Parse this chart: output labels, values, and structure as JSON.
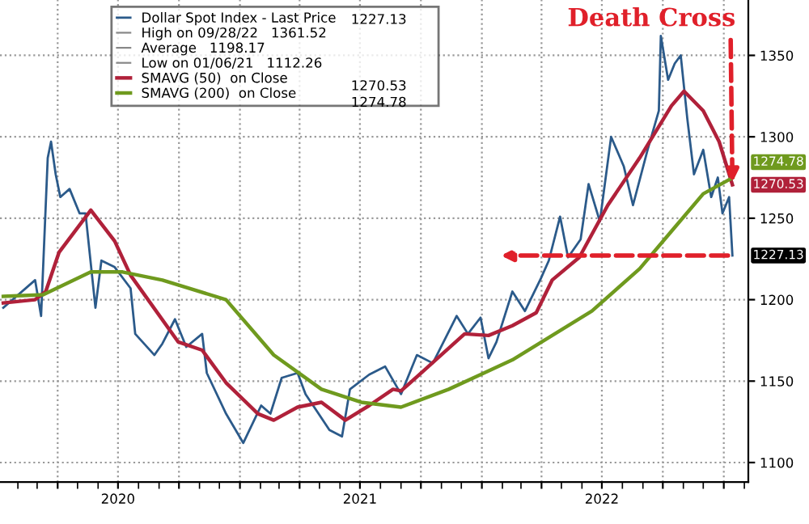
{
  "chart_data": {
    "type": "line",
    "x": [
      "2020-01-10",
      "2020-02-27",
      "2020-03-07",
      "2020-03-17",
      "2020-03-22",
      "2020-03-29",
      "2020-04-05",
      "2020-04-19",
      "2020-05-04",
      "2020-05-13",
      "2020-05-28",
      "2020-06-06",
      "2020-06-26",
      "2020-07-20",
      "2020-07-27",
      "2020-08-25",
      "2020-09-06",
      "2020-09-25",
      "2020-10-12",
      "2020-11-05",
      "2020-11-12",
      "2020-12-11",
      "2021-01-06",
      "2021-02-02",
      "2021-02-16",
      "2021-03-05",
      "2021-03-29",
      "2021-04-10",
      "2021-05-16",
      "2021-06-04",
      "2021-06-16",
      "2021-07-15",
      "2021-08-08",
      "2021-09-01",
      "2021-09-25",
      "2021-10-19",
      "2021-11-24",
      "2021-12-11",
      "2021-12-30",
      "2022-01-11",
      "2022-01-23",
      "2022-02-16",
      "2022-03-07",
      "2022-03-31",
      "2022-04-12",
      "2022-04-29",
      "2022-05-11",
      "2022-05-30",
      "2022-06-11",
      "2022-06-28",
      "2022-07-15",
      "2022-08-03",
      "2022-08-17",
      "2022-09-08",
      "2022-09-25",
      "2022-09-28",
      "2022-10-09",
      "2022-10-19",
      "2022-10-28",
      "2022-11-07",
      "2022-11-17",
      "2022-12-01",
      "2022-12-13",
      "2022-12-23",
      "2022-12-30",
      "2023-01-09",
      "2023-01-14"
    ],
    "series": [
      {
        "name": "Dollar Spot Index - Last Price",
        "color": "#2b5a8a",
        "values": [
          1195,
          1212,
          1190,
          1287,
          1297,
          1277,
          1263,
          1268,
          1253,
          1253,
          1195,
          1224,
          1220,
          1207,
          1179,
          1166,
          1173,
          1188,
          1171,
          1179,
          1155,
          1130,
          1112,
          1135,
          1130,
          1152,
          1155,
          1142,
          1120,
          1116,
          1145,
          1154,
          1159,
          1142,
          1166,
          1161,
          1190,
          1179,
          1189,
          1164,
          1174,
          1205,
          1193,
          1213,
          1224,
          1251,
          1226,
          1237,
          1271,
          1248,
          1300,
          1282,
          1258,
          1292,
          1316,
          1362,
          1335,
          1345,
          1350,
          1311,
          1277,
          1292,
          1263,
          1275,
          1253,
          1263,
          1227.13
        ],
        "value_labels": [
          null,
          null,
          null,
          null,
          null,
          null,
          null,
          null,
          null,
          null,
          null,
          null,
          null,
          null,
          null,
          null,
          null,
          null,
          null,
          null,
          null,
          null,
          null,
          null,
          null,
          null,
          null,
          null,
          null,
          null,
          null,
          null,
          null,
          null,
          null,
          null,
          null,
          null,
          null,
          null,
          null,
          null,
          null,
          null,
          null,
          null,
          null,
          null,
          null,
          null,
          null,
          null,
          null,
          null,
          null,
          null,
          null,
          null,
          null,
          null,
          null,
          null,
          null,
          null,
          null,
          null,
          "1227.13"
        ]
      },
      {
        "name": "SMAVG (50)  on Close",
        "color": "#b0213a",
        "x": [
          "2020-01-10",
          "2020-02-27",
          "2020-03-14",
          "2020-04-03",
          "2020-05-21",
          "2020-06-26",
          "2020-07-20",
          "2020-09-30",
          "2020-11-05",
          "2020-12-11",
          "2021-01-28",
          "2021-02-21",
          "2021-03-29",
          "2021-05-04",
          "2021-06-09",
          "2021-07-15",
          "2021-08-20",
          "2021-09-01",
          "2021-10-07",
          "2021-12-06",
          "2022-01-11",
          "2022-02-16",
          "2022-03-24",
          "2022-04-17",
          "2022-05-28",
          "2022-07-10",
          "2022-08-27",
          "2022-10-14",
          "2022-11-02",
          "2022-12-01",
          "2022-12-25",
          "2023-01-14"
        ],
        "values": [
          1198,
          1200,
          1205,
          1229,
          1255,
          1236,
          1215,
          1174,
          1169,
          1149,
          1130,
          1126,
          1134,
          1137,
          1126,
          1135,
          1145,
          1144,
          1157,
          1179,
          1178,
          1184,
          1192,
          1212,
          1226,
          1258,
          1287,
          1319,
          1328,
          1316,
          1297,
          1270.53
        ],
        "value_labels": [
          null,
          null,
          null,
          null,
          null,
          null,
          null,
          null,
          null,
          null,
          null,
          null,
          null,
          null,
          null,
          null,
          null,
          null,
          null,
          null,
          null,
          null,
          null,
          null,
          null,
          null,
          null,
          null,
          null,
          null,
          null,
          "1270.53"
        ]
      },
      {
        "name": "SMAVG (200)  on Close",
        "color": "#6f9a1e",
        "x": [
          "2020-01-10",
          "2020-03-10",
          "2020-05-21",
          "2020-07-08",
          "2020-09-06",
          "2020-12-11",
          "2021-02-21",
          "2021-05-04",
          "2021-07-03",
          "2021-09-01",
          "2021-11-12",
          "2021-12-30",
          "2022-02-16",
          "2022-04-17",
          "2022-06-16",
          "2022-08-27",
          "2022-10-14",
          "2022-12-01",
          "2023-01-14"
        ],
        "values": [
          1202,
          1203,
          1217,
          1217,
          1212,
          1200,
          1166,
          1145,
          1137,
          1134,
          1145,
          1154,
          1163,
          1178,
          1193,
          1219,
          1242,
          1265,
          1274.78
        ],
        "value_labels": [
          null,
          null,
          null,
          null,
          null,
          null,
          null,
          null,
          null,
          null,
          null,
          null,
          null,
          null,
          null,
          null,
          null,
          null,
          "1274.78"
        ]
      }
    ],
    "annotations": [
      {
        "text": "Death Cross",
        "x": "2023-01-14",
        "y": 1272
      },
      "High on 09/28/22   1361.52",
      "Average   1198.17",
      "Low on 01/06/21   1112.26"
    ],
    "xlim": [
      "2020-01-05",
      "2023-02-07"
    ],
    "xticks": [
      {
        "value": "2020-04-01",
        "label": null
      },
      {
        "value": "2020-07-01",
        "label": "2020"
      },
      {
        "value": "2020-10-01",
        "label": null
      },
      {
        "value": "2021-01-01",
        "label": null
      },
      {
        "value": "2021-04-01",
        "label": null
      },
      {
        "value": "2021-07-01",
        "label": "2021"
      },
      {
        "value": "2021-10-01",
        "label": null
      },
      {
        "value": "2022-01-01",
        "label": null
      },
      {
        "value": "2022-04-01",
        "label": null
      },
      {
        "value": "2022-07-01",
        "label": "2022"
      },
      {
        "value": "2022-10-01",
        "label": null
      },
      {
        "value": "2023-01-01",
        "label": null
      }
    ],
    "ylim": [
      1088,
      1384
    ],
    "yticks": [
      1100,
      1150,
      1200,
      1250,
      1300,
      1350
    ],
    "grid": true,
    "legend": "top left",
    "marker": "none",
    "line_style": "solid"
  }
}
